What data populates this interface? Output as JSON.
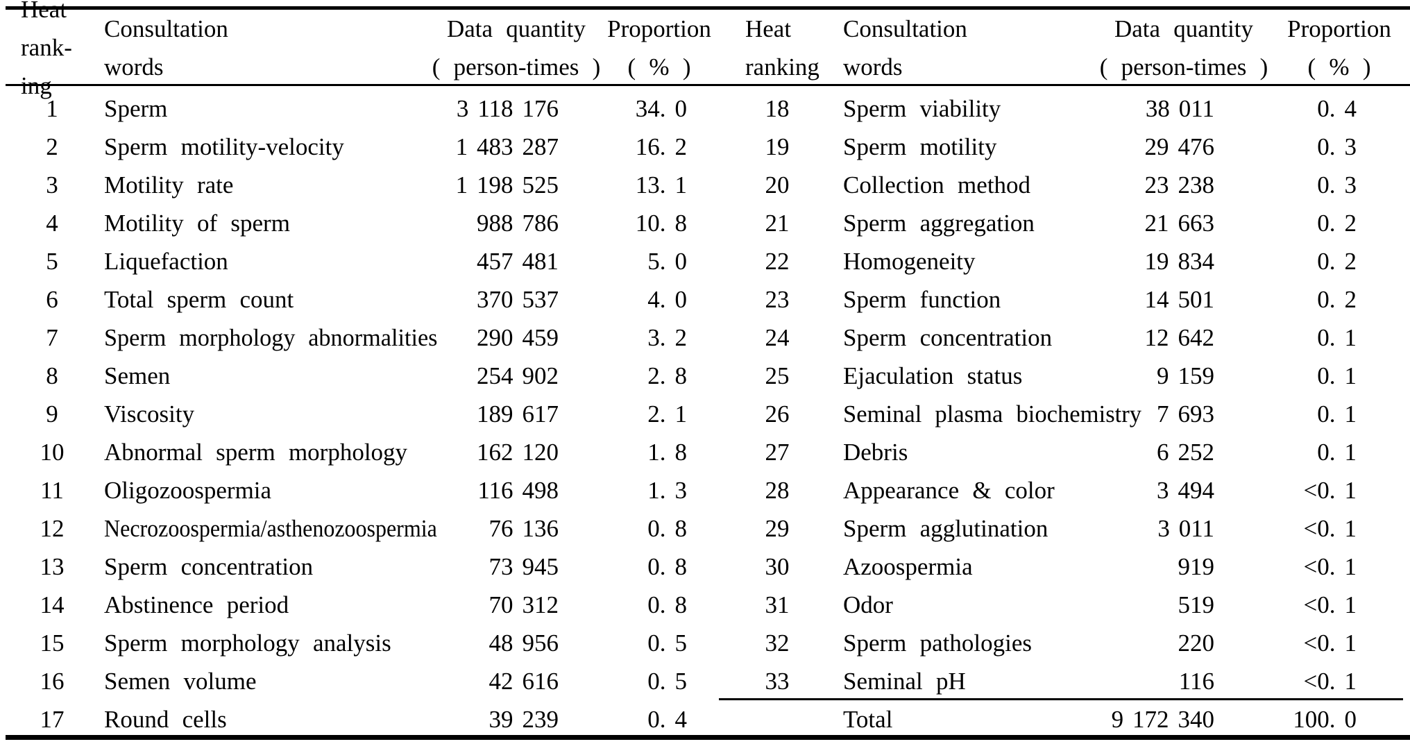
{
  "table": {
    "header": {
      "left": {
        "rank_l1": "Heat",
        "rank_l2": "rank-",
        "rank_l3": "ing",
        "words_l1": "Consultation",
        "words_l2": "words",
        "qty_l1": "Data quantity",
        "qty_l2": "( person-times )",
        "prop_l1": "Proportion",
        "prop_l2": "( % )"
      },
      "right": {
        "rank_l1": "Heat",
        "rank_l2": "ranking",
        "words_l1": "Consultation",
        "words_l2": "words",
        "qty_l1": "Data quantity",
        "qty_l2": "( person-times )",
        "prop_l1": "Proportion",
        "prop_l2": "( % )"
      }
    },
    "rows": [
      {
        "l_rank": "1",
        "l_words": "Sperm",
        "l_qty": "3 118 176",
        "l_prop": "34. 0",
        "r_rank": "18",
        "r_words": "Sperm viability",
        "r_qty": "38 011",
        "r_prop": "0. 4"
      },
      {
        "l_rank": "2",
        "l_words": "Sperm motility-velocity",
        "l_qty": "1 483 287",
        "l_prop": "16. 2",
        "r_rank": "19",
        "r_words": "Sperm motility",
        "r_qty": "29 476",
        "r_prop": "0. 3"
      },
      {
        "l_rank": "3",
        "l_words": "Motility rate",
        "l_qty": "1 198 525",
        "l_prop": "13. 1",
        "r_rank": "20",
        "r_words": "Collection method",
        "r_qty": "23 238",
        "r_prop": "0. 3"
      },
      {
        "l_rank": "4",
        "l_words": "Motility of sperm",
        "l_qty": "988 786",
        "l_prop": "10. 8",
        "r_rank": "21",
        "r_words": "Sperm aggregation",
        "r_qty": "21 663",
        "r_prop": "0. 2"
      },
      {
        "l_rank": "5",
        "l_words": "Liquefaction",
        "l_qty": "457 481",
        "l_prop": "5. 0",
        "r_rank": "22",
        "r_words": "Homogeneity",
        "r_qty": "19 834",
        "r_prop": "0. 2"
      },
      {
        "l_rank": "6",
        "l_words": "Total sperm count",
        "l_qty": "370 537",
        "l_prop": "4. 0",
        "r_rank": "23",
        "r_words": "Sperm function",
        "r_qty": "14 501",
        "r_prop": "0. 2"
      },
      {
        "l_rank": "7",
        "l_words": "Sperm morphology abnormalities",
        "l_qty": "290 459",
        "l_prop": "3. 2",
        "r_rank": "24",
        "r_words": "Sperm concentration",
        "r_qty": "12 642",
        "r_prop": "0. 1"
      },
      {
        "l_rank": "8",
        "l_words": "Semen",
        "l_qty": "254 902",
        "l_prop": "2. 8",
        "r_rank": "25",
        "r_words": "Ejaculation status",
        "r_qty": "9 159",
        "r_prop": "0. 1"
      },
      {
        "l_rank": "9",
        "l_words": "Viscosity",
        "l_qty": "189 617",
        "l_prop": "2. 1",
        "r_rank": "26",
        "r_words": "Seminal plasma biochemistry",
        "r_qty": "7 693",
        "r_prop": "0. 1"
      },
      {
        "l_rank": "10",
        "l_words": "Abnormal sperm morphology",
        "l_qty": "162 120",
        "l_prop": "1. 8",
        "r_rank": "27",
        "r_words": "Debris",
        "r_qty": "6 252",
        "r_prop": "0. 1"
      },
      {
        "l_rank": "11",
        "l_words": "Oligozoospermia",
        "l_qty": "116 498",
        "l_prop": "1. 3",
        "r_rank": "28",
        "r_words": "Appearance & color",
        "r_qty": "3 494",
        "r_prop": "<0. 1"
      },
      {
        "l_rank": "12",
        "l_words": "Necrozoospermia/asthenozoospermia",
        "l_qty": "76 136",
        "l_prop": "0. 8",
        "r_rank": "29",
        "r_words": "Sperm agglutination",
        "r_qty": "3 011",
        "r_prop": "<0. 1"
      },
      {
        "l_rank": "13",
        "l_words": "Sperm concentration",
        "l_qty": "73 945",
        "l_prop": "0. 8",
        "r_rank": "30",
        "r_words": "Azoospermia",
        "r_qty": "919",
        "r_prop": "<0. 1"
      },
      {
        "l_rank": "14",
        "l_words": "Abstinence period",
        "l_qty": "70 312",
        "l_prop": "0. 8",
        "r_rank": "31",
        "r_words": "Odor",
        "r_qty": "519",
        "r_prop": "<0. 1"
      },
      {
        "l_rank": "15",
        "l_words": "Sperm morphology analysis",
        "l_qty": "48 956",
        "l_prop": "0. 5",
        "r_rank": "32",
        "r_words": "Sperm pathologies",
        "r_qty": "220",
        "r_prop": "<0. 1"
      },
      {
        "l_rank": "16",
        "l_words": "Semen volume",
        "l_qty": "42 616",
        "l_prop": "0. 5",
        "r_rank": "33",
        "r_words": "Seminal pH",
        "r_qty": "116",
        "r_prop": "<0. 1"
      },
      {
        "l_rank": "17",
        "l_words": "Round cells",
        "l_qty": "39 239",
        "l_prop": "0. 4",
        "r_rank": "",
        "r_words": "Total",
        "r_qty": "9 172 340",
        "r_prop": "100. 0"
      }
    ],
    "colors": {
      "text": "#000000",
      "background": "#ffffff",
      "rule": "#000000"
    }
  }
}
